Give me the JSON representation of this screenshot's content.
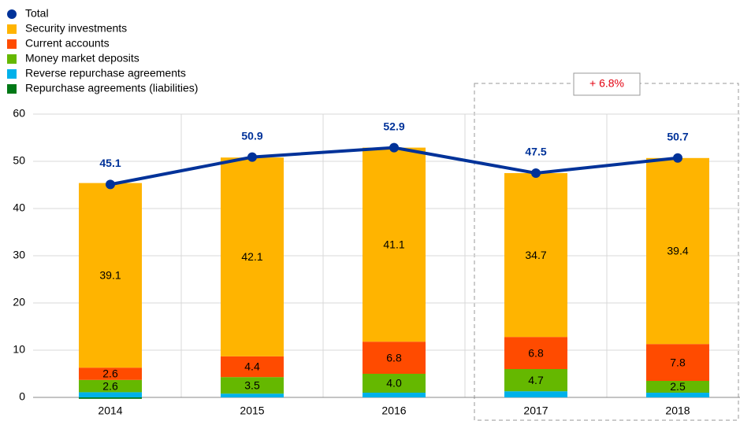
{
  "chart_data": {
    "type": "bar",
    "categories": [
      "2014",
      "2015",
      "2016",
      "2017",
      "2018"
    ],
    "series": [
      {
        "name": "Total",
        "type": "line",
        "color": "#003299",
        "values": [
          45.1,
          50.9,
          52.9,
          47.5,
          50.7
        ]
      },
      {
        "name": "Security investments",
        "color": "#ffb400",
        "values": [
          39.1,
          42.1,
          41.1,
          34.7,
          39.4
        ]
      },
      {
        "name": "Current accounts",
        "color": "#ff4b00",
        "values": [
          2.6,
          4.4,
          6.8,
          6.8,
          7.8
        ]
      },
      {
        "name": "Money market deposits",
        "color": "#65b800",
        "values": [
          2.6,
          3.5,
          4.0,
          4.7,
          2.5
        ],
        "value_labels": [
          "2.6",
          "3.5",
          "4.0",
          "4.7",
          "2.5"
        ]
      },
      {
        "name": "Reverse repurchase agreements",
        "color": "#00b1ea",
        "values": [
          1.1,
          0.8,
          1.0,
          1.3,
          1.0
        ]
      },
      {
        "name": "Repurchase agreements (liabilities)",
        "color": "#007816",
        "values": [
          -0.3,
          0,
          0,
          0,
          0
        ]
      }
    ],
    "annotation": "+ 6.8%",
    "ylim": [
      0,
      60
    ],
    "yticks": [
      0,
      10,
      20,
      30,
      40,
      50,
      60
    ],
    "grid": true,
    "legend": "top-left"
  }
}
